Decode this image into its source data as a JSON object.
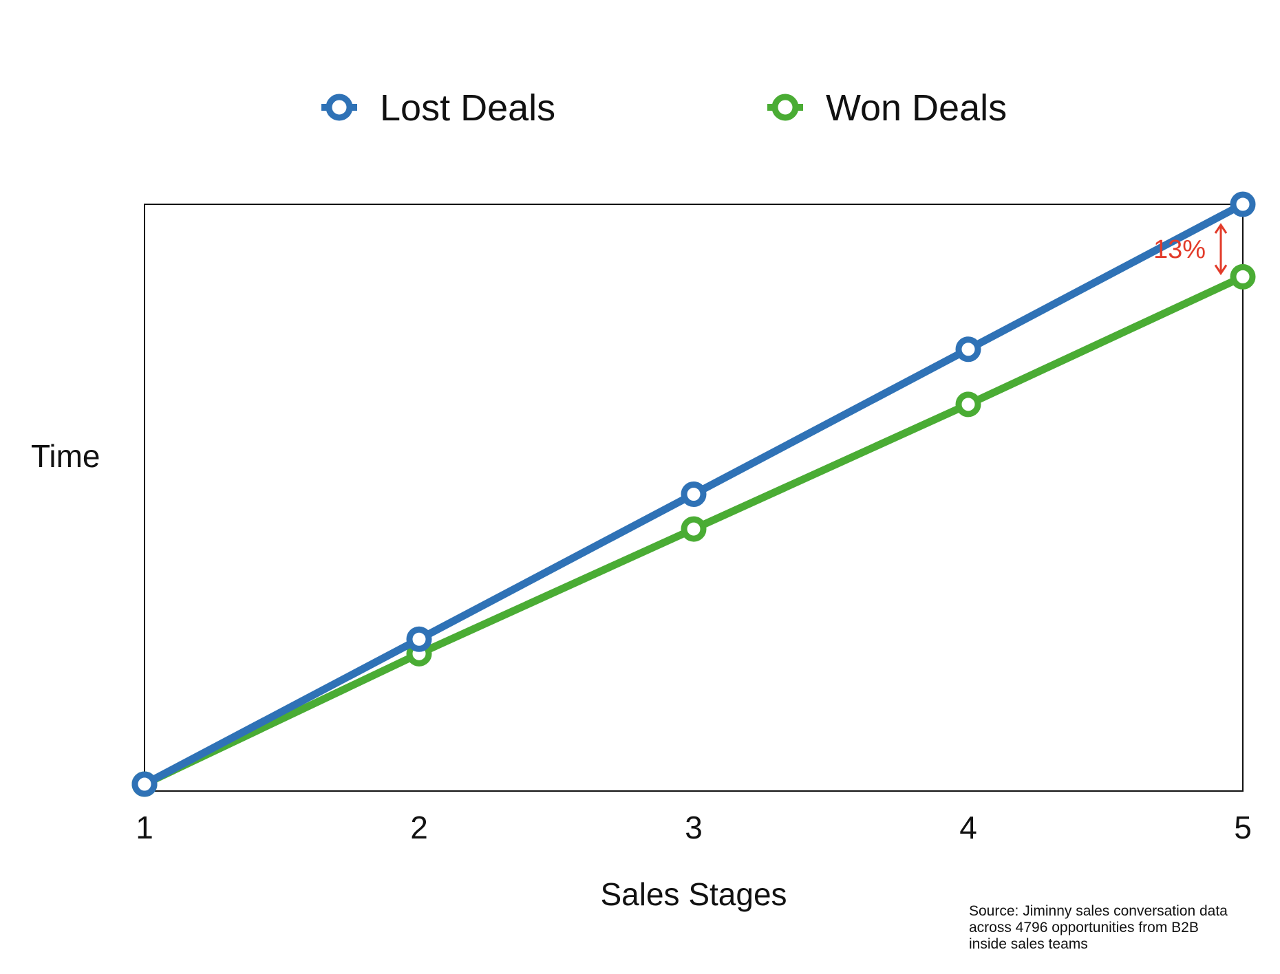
{
  "chart_data": {
    "type": "line",
    "title": "",
    "xlabel": "Sales Stages",
    "ylabel": "Time",
    "x": [
      1,
      2,
      3,
      4,
      5
    ],
    "xlim": [
      1,
      5
    ],
    "ylim": [
      0,
      100
    ],
    "grid": false,
    "legend_position": "top",
    "y_ticks_shown": false,
    "series": [
      {
        "name": "Lost Deals",
        "color": "#2f72b6",
        "values": [
          0,
          25,
          50,
          75,
          100
        ]
      },
      {
        "name": "Won Deals",
        "color": "#4aac34",
        "values": [
          0,
          22.5,
          44,
          65.5,
          87.5
        ]
      }
    ],
    "annotation": {
      "label": "13%",
      "x": 5,
      "from_series": "Lost Deals",
      "to_series": "Won Deals",
      "color": "#e23b2a"
    },
    "source_lines": [
      "Source: Jiminny sales conversation data",
      "across 4796 opportunities from B2B",
      "inside sales teams"
    ]
  }
}
